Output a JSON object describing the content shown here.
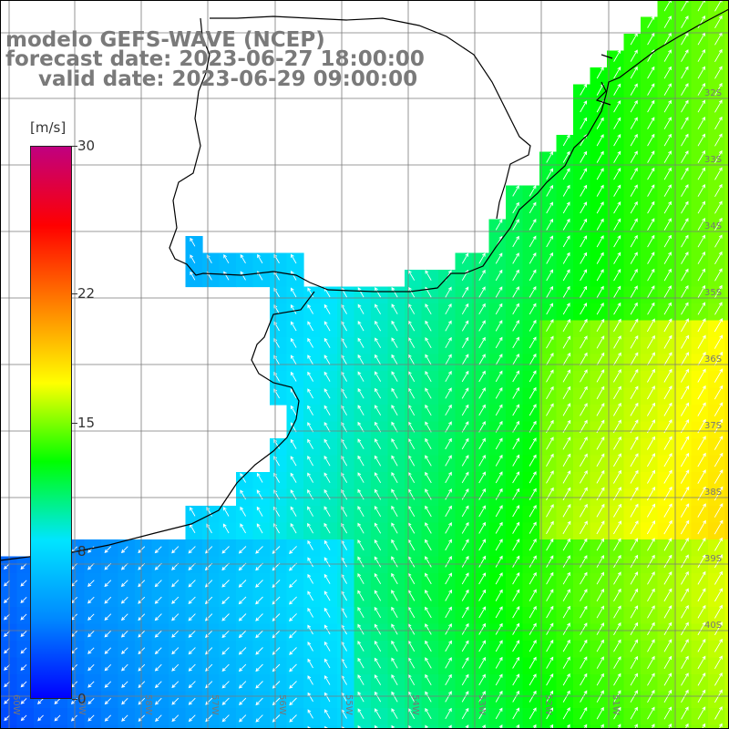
{
  "title": {
    "line1": "modelo GEFS-WAVE (NCEP)",
    "line2": "forecast date: 2023-06-27 18:00:00",
    "line3": "valid date: 2023-06-29 09:00:00"
  },
  "colorbar": {
    "unit": "[m/s]",
    "min": 0,
    "max": 30,
    "ticks": [
      "30",
      "22",
      "15",
      "8",
      "0"
    ],
    "colors": [
      "#0000ff",
      "#0088ff",
      "#00e5ff",
      "#00ff00",
      "#ffff00",
      "#ff8000",
      "#ff0000",
      "#c00080"
    ]
  },
  "map": {
    "variable": "wind speed",
    "lon_labels": [
      "60W",
      "59W",
      "58W",
      "57W",
      "56W",
      "55W",
      "54W",
      "53W",
      "52W",
      "51W"
    ],
    "lat_labels": [
      "32S",
      "33S",
      "34S",
      "35S",
      "36S",
      "37S",
      "38S",
      "39S",
      "40S"
    ],
    "land_color": "#ffffff",
    "grid_color": "#7a7a7a",
    "arrow_color": "#ffffff",
    "coast_color": "#000000"
  }
}
